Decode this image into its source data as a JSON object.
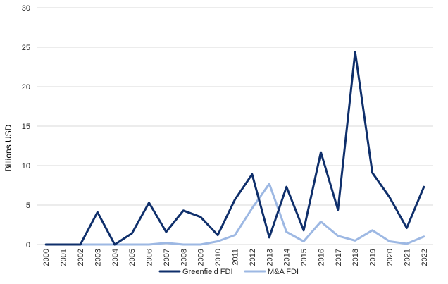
{
  "chart_data": {
    "type": "line",
    "ylabel": "Billions USD",
    "ylim": [
      0,
      30
    ],
    "yticks": [
      0,
      5,
      10,
      15,
      20,
      25,
      30
    ],
    "grid": true,
    "legend_position": "bottom",
    "categories": [
      "2000",
      "2001",
      "2002",
      "2003",
      "2004",
      "2005",
      "2006",
      "2007",
      "2008",
      "2009",
      "2010",
      "2011",
      "2012",
      "2013",
      "2014",
      "2015",
      "2016",
      "2017",
      "2018",
      "2019",
      "2020",
      "2021",
      "2022"
    ],
    "series": [
      {
        "name": "Greenfield FDI",
        "color": "#0f2f6b",
        "values": [
          0,
          0,
          0,
          4.1,
          0,
          1.4,
          5.3,
          1.6,
          4.3,
          3.5,
          1.2,
          5.7,
          8.9,
          0.9,
          7.3,
          1.8,
          11.7,
          4.4,
          24.4,
          9.1,
          6.0,
          2.1,
          7.3
        ]
      },
      {
        "name": "M&A FDI",
        "color": "#9db8e3",
        "values": [
          0,
          0,
          0,
          0,
          0,
          0,
          0,
          0.2,
          0,
          0,
          0.4,
          1.2,
          4.6,
          7.7,
          1.6,
          0.4,
          2.9,
          1.1,
          0.5,
          1.8,
          0.4,
          0.1,
          1.0
        ]
      }
    ]
  }
}
